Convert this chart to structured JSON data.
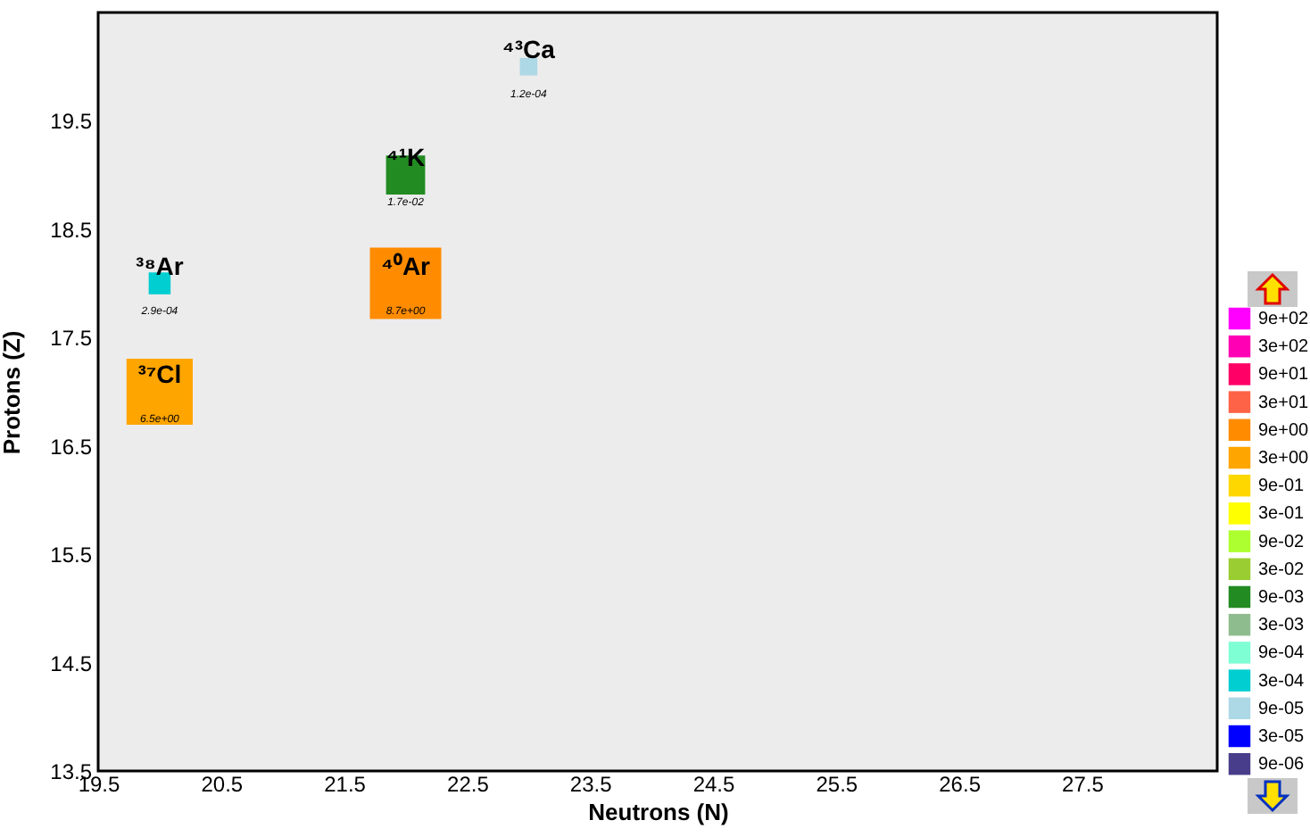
{
  "chart_data": {
    "type": "bubble",
    "xlabel": "Neutrons (N)",
    "ylabel": "Protons (Z)",
    "xlim": [
      19.5,
      28.6
    ],
    "xticks": [
      19.5,
      20.5,
      21.5,
      22.5,
      23.5,
      24.5,
      25.5,
      26.5,
      27.5
    ],
    "ylim": [
      13.5,
      20.5
    ],
    "yticks": [
      13.5,
      14.5,
      15.5,
      16.5,
      17.5,
      18.5,
      19.5
    ],
    "grid": false,
    "marker": "square",
    "legend": "right",
    "series": [
      {
        "name": "9e+02",
        "color": "#ff00ff"
      },
      {
        "name": "3e+02",
        "color": "#ff00b4"
      },
      {
        "name": "9e+01",
        "color": "#ff0066"
      },
      {
        "name": "3e+01",
        "color": "#ff6347"
      },
      {
        "name": "9e+00",
        "color": "#ff8c00",
        "x": [
          22
        ],
        "values": [
          18
        ],
        "sizes": [
          1
        ]
      },
      {
        "name": "3e+00",
        "color": "#ffa500",
        "x": [
          20
        ],
        "values": [
          17
        ],
        "sizes": [
          0.86
        ]
      },
      {
        "name": "9e-01",
        "color": "#ffd700"
      },
      {
        "name": "3e-01",
        "color": "#ffff00"
      },
      {
        "name": "9e-02",
        "color": "#adff2f"
      },
      {
        "name": "3e-02",
        "color": "#9acd32"
      },
      {
        "name": "9e-03",
        "color": "#228b22",
        "x": [
          22
        ],
        "values": [
          19
        ],
        "sizes": [
          0.3
        ]
      },
      {
        "name": "3e-03",
        "color": "#8fbc8f"
      },
      {
        "name": "9e-04",
        "color": "#7fffd4"
      },
      {
        "name": "3e-04",
        "color": "#00ced1",
        "x": [
          20
        ],
        "values": [
          18
        ],
        "sizes": [
          0.094
        ]
      },
      {
        "name": "9e-05",
        "color": "#add8e6",
        "x": [
          23
        ],
        "values": [
          20
        ],
        "sizes": [
          0.06
        ]
      },
      {
        "name": "3e-05",
        "color": "#0000ff"
      },
      {
        "name": "9e-06",
        "color": "#483d8b"
      }
    ],
    "annotations": [
      {
        "text": "³⁷Cl",
        "x": 20,
        "y": 17
      },
      {
        "text": "6.5e+00",
        "x": 20,
        "y": 17
      },
      {
        "text": "³⁸Ar",
        "x": 20,
        "y": 18
      },
      {
        "text": "2.9e-04",
        "x": 20,
        "y": 18
      },
      {
        "text": "⁴⁰Ar",
        "x": 22,
        "y": 18
      },
      {
        "text": "8.7e+00",
        "x": 22,
        "y": 18
      },
      {
        "text": "⁴¹K",
        "x": 22,
        "y": 19
      },
      {
        "text": "1.7e-02",
        "x": 22,
        "y": 19
      },
      {
        "text": "⁴³Ca",
        "x": 23,
        "y": 20
      },
      {
        "text": "1.2e-04",
        "x": 23,
        "y": 20
      }
    ]
  }
}
